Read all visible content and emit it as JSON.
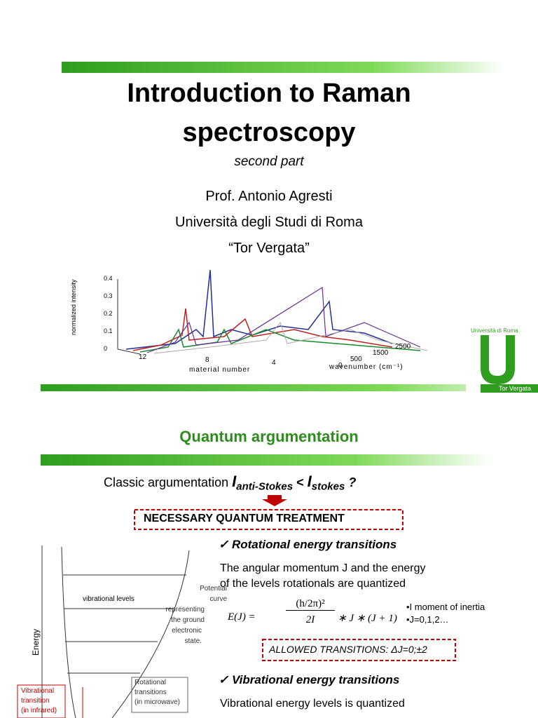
{
  "slide1": {
    "title_lines": [
      "Introduction to Raman",
      "spectroscopy"
    ],
    "subtitle": "second part",
    "author_lines": [
      "Prof. Antonio Agresti",
      "Università degli Studi di Roma",
      "“Tor Vergata”"
    ],
    "figure": {
      "y_label": "normalized intensity",
      "y_ticks": [
        "0.4",
        "0.3",
        "0.2",
        "0.1",
        "0"
      ],
      "x_label": "material number",
      "x_ticks": [
        "12",
        "8",
        "4",
        "0"
      ],
      "z_label": "wavenumber (cm⁻¹)",
      "z_ticks": [
        "500",
        "1500",
        "2500"
      ]
    },
    "logo": {
      "top": "Università di Roma",
      "bottom": "Tor Vergata"
    }
  },
  "slide2": {
    "title": "Quantum argumentation",
    "classic": {
      "text": "Classic argumentation",
      "i1": "I",
      "sub1": "anti-Stokes",
      "lt": "<",
      "i2": "I",
      "sub2": "stokes",
      "q": "?"
    },
    "box": "NECESSARY QUANTUM TREATMENT",
    "rotational": {
      "heading": "Rotational energy transitions",
      "text_lines": [
        "The angular momentum J and the energy",
        "of the levels rotationals are quantized"
      ],
      "formula": {
        "lhs": "E(J) =",
        "num": "(h/2π)²",
        "den": "2I",
        "rest": "∗ J ∗ (J + 1)"
      },
      "notes": [
        "•I moment of inertia",
        "•J=0,1,2…"
      ],
      "allowed_label": "ALLOWED TRANSITIONS",
      "allowed_value": ": ΔJ=0;±2"
    },
    "vibrational": {
      "heading": "Vibrational energy transitions",
      "text": "Vibrational energy levels is quantized"
    },
    "diagram": {
      "energy": "Energy",
      "levels": "vibrational levels",
      "curve_lines": [
        "Potential",
        "curve",
        "representing",
        "the ground",
        "electronic",
        "state."
      ],
      "rot_lines": [
        "Rotational",
        "transitions",
        "(in microwave)"
      ],
      "vib_lines": [
        "Vibrational",
        "transition",
        "(in infrared)"
      ]
    }
  }
}
